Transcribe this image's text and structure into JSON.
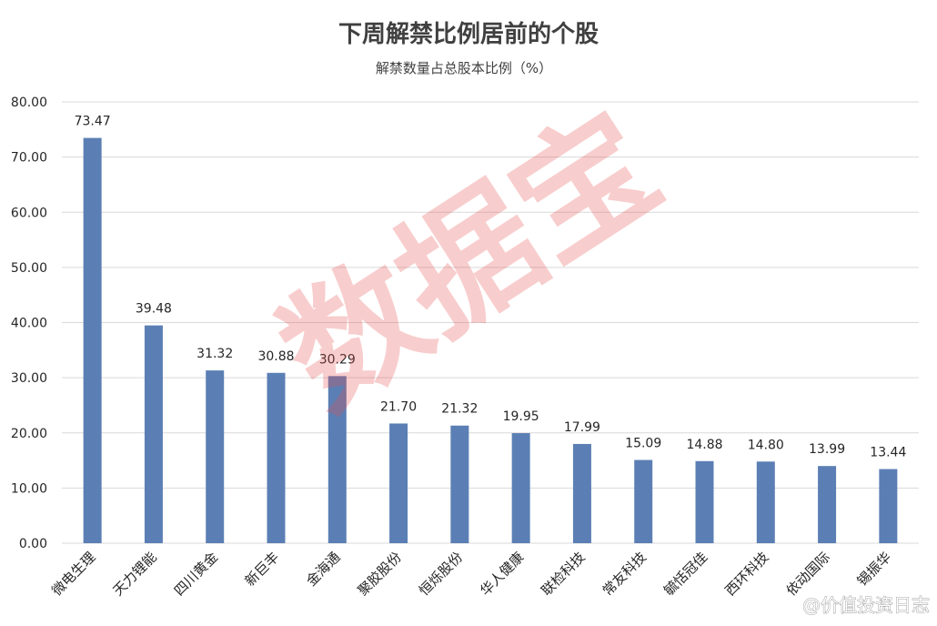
{
  "chart_data": {
    "type": "bar",
    "title": "下周解禁比例居前的个股",
    "subtitle": "解禁数量占总股本比例（%）",
    "categories": [
      "微电生理",
      "天力锂能",
      "四川黄金",
      "新巨丰",
      "金海通",
      "聚胶股份",
      "恒烁股份",
      "华人健康",
      "联检科技",
      "常友科技",
      "毓恬冠佳",
      "西环科技",
      "依动国际",
      "锡振华"
    ],
    "values": [
      73.47,
      39.48,
      31.32,
      30.88,
      30.29,
      21.7,
      21.32,
      19.95,
      17.99,
      15.09,
      14.88,
      14.8,
      13.99,
      13.44
    ],
    "value_labels": [
      "73.47",
      "39.48",
      "31.32",
      "30.88",
      "30.29",
      "21.70",
      "21.32",
      "19.95",
      "17.99",
      "15.09",
      "14.88",
      "14.80",
      "13.99",
      "13.44"
    ],
    "yticks": [
      "0.00",
      "10.00",
      "20.00",
      "30.00",
      "40.00",
      "50.00",
      "60.00",
      "70.00",
      "80.00"
    ],
    "ylim": [
      0,
      80
    ],
    "grid": true,
    "bar_color": "#5b7fb4"
  },
  "watermark": {
    "text": "数据宝",
    "color": "#e64a4a"
  },
  "signature": "@价值投资日志"
}
